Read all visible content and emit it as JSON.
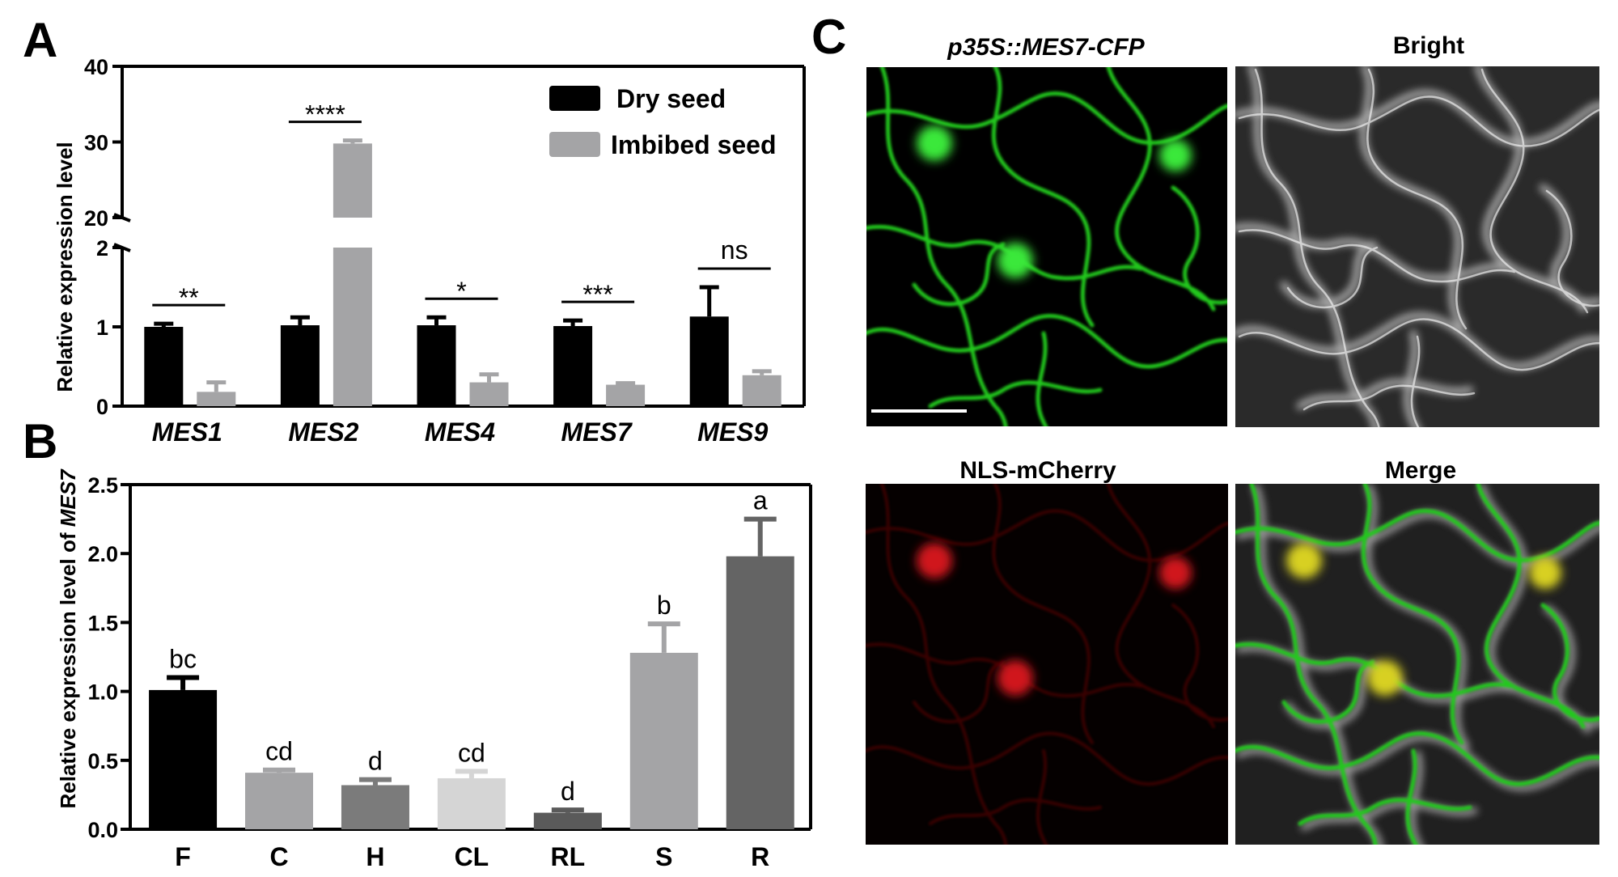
{
  "panels": {
    "a": "A",
    "b": "B",
    "c": "C"
  },
  "colors": {
    "dry": "#000000",
    "imbibed": "#a4a4a6",
    "b_bars": [
      "#000000",
      "#a4a4a6",
      "#7b7b7b",
      "#d5d5d5",
      "#5a5a5a",
      "#a4a4a6",
      "#646464"
    ],
    "gfp": "#22c81e",
    "mcherry": "#c8141a"
  },
  "chart_data": [
    {
      "type": "bar",
      "panel": "A",
      "categories": [
        "MES1",
        "MES2",
        "MES4",
        "MES7",
        "MES9"
      ],
      "ylabel": "Relative expression level",
      "broken_axis": {
        "lower": [
          0,
          2
        ],
        "upper": [
          20,
          40
        ]
      },
      "yticks": [
        "0",
        "1",
        "2",
        "20",
        "30",
        "40"
      ],
      "series": [
        {
          "name": "Dry seed",
          "values": [
            1.0,
            1.02,
            1.02,
            1.01,
            1.13
          ],
          "errors": [
            0.04,
            0.1,
            0.1,
            0.07,
            0.37
          ]
        },
        {
          "name": "Imbibed seed",
          "values": [
            0.18,
            29.8,
            0.3,
            0.27,
            0.39
          ],
          "errors": [
            0.12,
            0.4,
            0.1,
            0.02,
            0.05
          ]
        }
      ],
      "significance": [
        "**",
        "****",
        "*",
        "***",
        "ns"
      ]
    },
    {
      "type": "bar",
      "panel": "B",
      "categories": [
        "F",
        "C",
        "H",
        "CL",
        "RL",
        "S",
        "R"
      ],
      "ylabel_prefix": "Relative expression level of ",
      "ylabel_gene": "MES7",
      "ylim": [
        0,
        2.5
      ],
      "yticks": [
        "0.0",
        "0.5",
        "1.0",
        "1.5",
        "2.0",
        "2.5"
      ],
      "values": [
        1.01,
        0.41,
        0.32,
        0.37,
        0.12,
        1.28,
        1.98
      ],
      "errors": [
        0.09,
        0.02,
        0.04,
        0.05,
        0.02,
        0.21,
        0.27
      ],
      "letters": [
        "bc",
        "cd",
        "d",
        "cd",
        "d",
        "b",
        "a"
      ]
    }
  ],
  "panel_c": {
    "titles": {
      "cfp_prefix": "p35S::",
      "cfp_gene": "MES7",
      "cfp_suffix": "-CFP",
      "bright": "Bright",
      "nls": "NLS-mCherry",
      "merge": "Merge"
    }
  }
}
